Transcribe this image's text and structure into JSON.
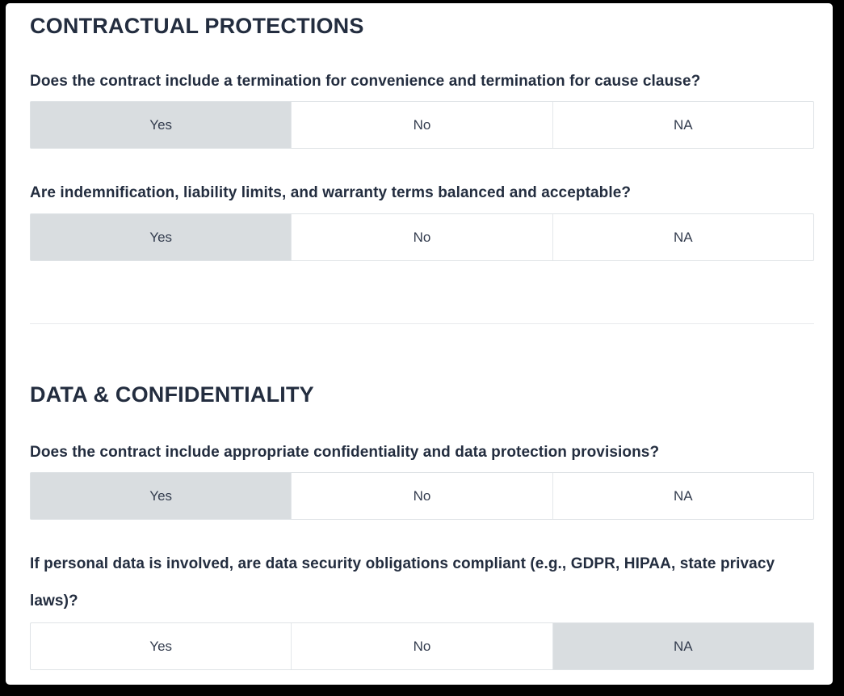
{
  "colors": {
    "text_dark": "#232d3f",
    "option_text": "#333c4e",
    "selected_bg": "#d9dde0",
    "cell_border": "#dfe3e6",
    "divider": "#e8eaec",
    "frame_bg": "#000000",
    "card_bg": "#ffffff"
  },
  "sections": [
    {
      "heading": "CONTRACTUAL PROTECTIONS",
      "questions": [
        {
          "text": "Does the contract include a termination for convenience and termination for cause clause?",
          "options": [
            "Yes",
            "No",
            "NA"
          ],
          "selected": "Yes"
        },
        {
          "text": "Are indemnification, liability limits, and warranty terms balanced and acceptable?",
          "options": [
            "Yes",
            "No",
            "NA"
          ],
          "selected": "Yes"
        }
      ]
    },
    {
      "heading": "DATA & CONFIDENTIALITY",
      "questions": [
        {
          "text": "Does the contract include appropriate confidentiality and data protection provisions?",
          "options": [
            "Yes",
            "No",
            "NA"
          ],
          "selected": "Yes"
        },
        {
          "text": "If personal data is involved, are data security obligations compliant (e.g., GDPR, HIPAA, state privacy laws)?",
          "options": [
            "Yes",
            "No",
            "NA"
          ],
          "selected": "NA"
        }
      ]
    }
  ]
}
